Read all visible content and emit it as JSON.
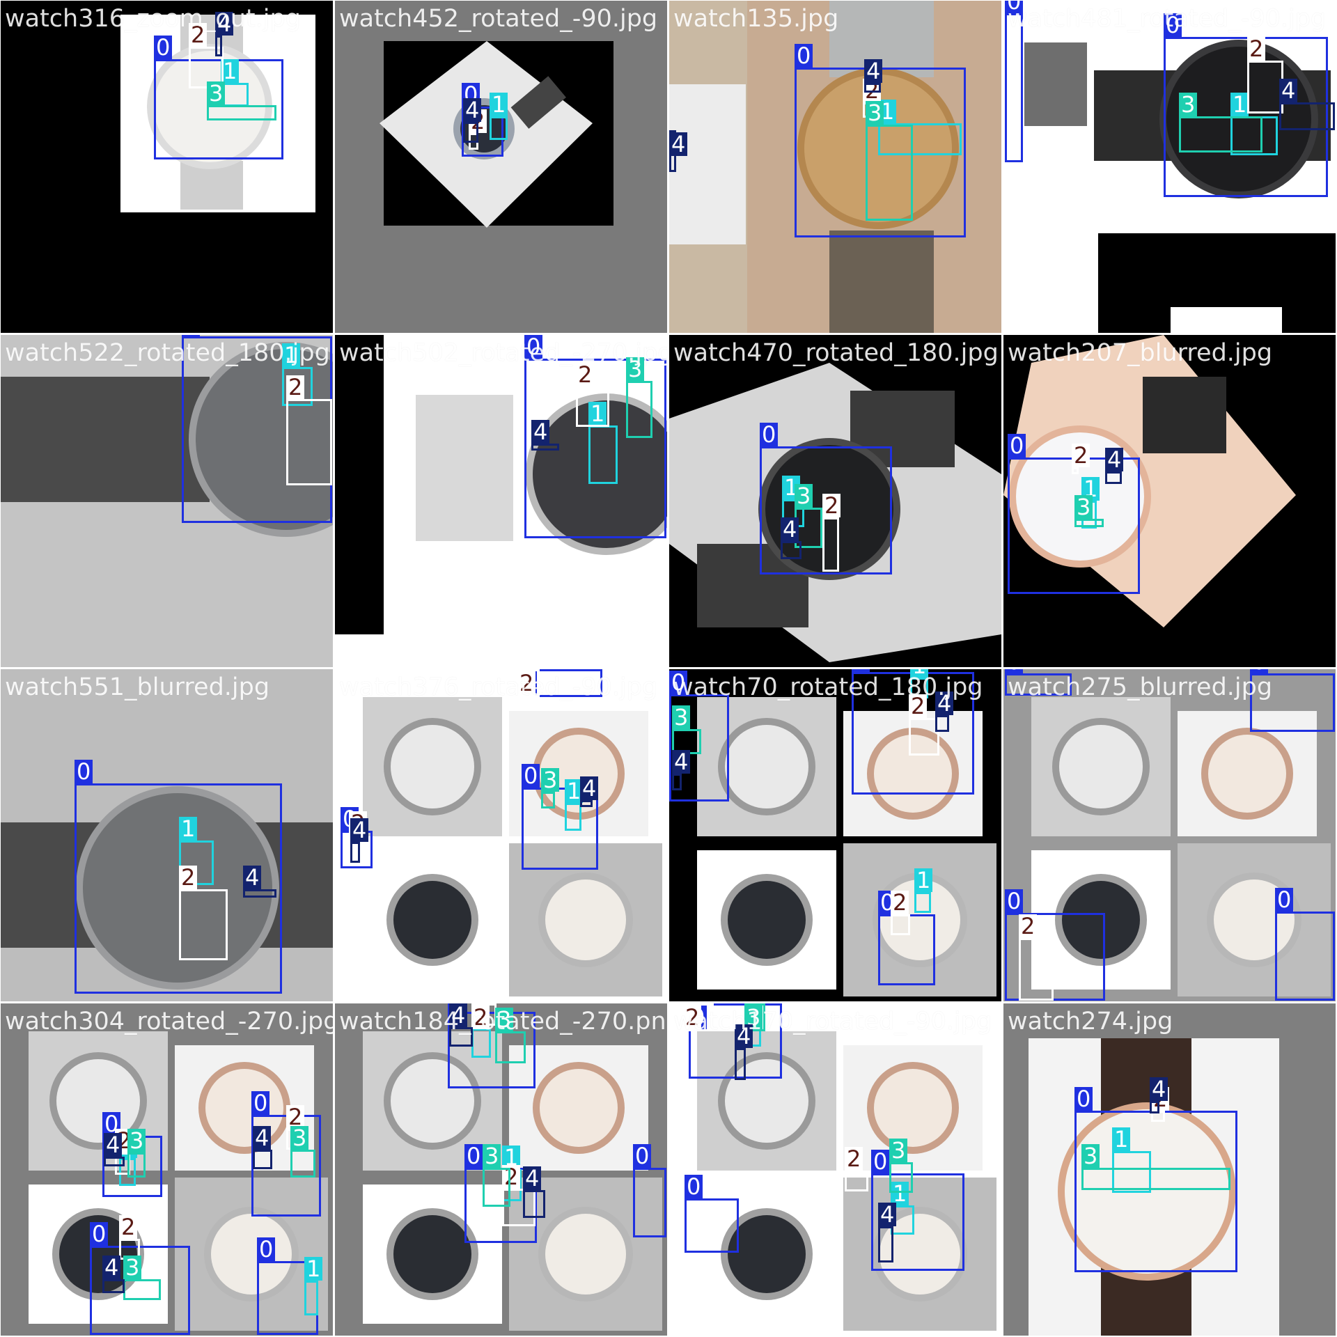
{
  "classes": {
    "0": {
      "color": "#1f30e0",
      "text": "#ffffff"
    },
    "1": {
      "color": "#20d3de",
      "text": "#ffffff"
    },
    "2": {
      "color": "#ffffff",
      "text": "#5a1a14"
    },
    "3": {
      "color": "#1fcfb0",
      "text": "#ffffff"
    },
    "4": {
      "color": "#13236e",
      "text": "#ffffff"
    }
  },
  "tiles": [
    {
      "name": "watch316_zoom_out.jpg",
      "bg": "#000000",
      "icon": "silver-bracelet-watch-icon",
      "boxes": [
        [
          "0",
          ""
        ],
        [
          "1",
          ""
        ],
        [
          "2",
          ""
        ],
        [
          "3",
          ""
        ],
        [
          "4",
          ""
        ]
      ]
    },
    {
      "name": "watch452_rotated_-90.jpg",
      "bg": "#7a7a7a",
      "icon": "rotated-watch-icon",
      "boxes": [
        [
          "0",
          ""
        ],
        [
          "1",
          ""
        ],
        [
          "2",
          ""
        ],
        [
          "4",
          ""
        ]
      ]
    },
    {
      "name": "watch135.jpg",
      "bg": "#c9b9a3",
      "icon": "gold-fluted-bezel-watch-icon",
      "boxes": [
        [
          "0",
          ""
        ],
        [
          "1",
          ""
        ],
        [
          "2",
          ""
        ],
        [
          "3",
          ""
        ],
        [
          "4",
          ""
        ],
        [
          "4",
          ""
        ]
      ]
    },
    {
      "name": "watch481_rotated_-90.jpg",
      "bg": "#ffffff",
      "icon": "black-chronograph-watch-icon",
      "boxes": [
        [
          "0",
          ""
        ],
        [
          "0",
          ""
        ],
        [
          "1",
          ""
        ],
        [
          "2",
          ""
        ],
        [
          "3",
          ""
        ],
        [
          "4",
          ""
        ]
      ]
    },
    {
      "name": "watch522_rotated_180.jpg",
      "bg": "#c4c4c4",
      "icon": "grey-woven-strap-watch-icon",
      "boxes": [
        [
          "0",
          ""
        ],
        [
          "1",
          ""
        ],
        [
          "2",
          ""
        ]
      ]
    },
    {
      "name": "watch502_rotated_-270.jpg",
      "bg": "#ffffff",
      "icon": "mesh-bracelet-watch-icon",
      "boxes": [
        [
          "0",
          ""
        ],
        [
          "1",
          ""
        ],
        [
          "2",
          ""
        ],
        [
          "3",
          ""
        ],
        [
          "4",
          ""
        ]
      ]
    },
    {
      "name": "watch470_rotated_180.jpg",
      "bg": "#000000",
      "icon": "dark-diver-watch-icon",
      "boxes": [
        [
          "0",
          ""
        ],
        [
          "1",
          ""
        ],
        [
          "2",
          ""
        ],
        [
          "3",
          ""
        ],
        [
          "4",
          ""
        ]
      ]
    },
    {
      "name": "watch207_blurred.jpg",
      "bg": "#000000",
      "icon": "rose-gold-watch-icon",
      "boxes": [
        [
          "0",
          ""
        ],
        [
          "1",
          ""
        ],
        [
          "2",
          ""
        ],
        [
          "3",
          ""
        ],
        [
          "4",
          ""
        ]
      ]
    },
    {
      "name": "watch551_blurred.jpg",
      "bg": "#bdbdbd",
      "icon": "grey-dial-watch-icon",
      "boxes": [
        [
          "0",
          ""
        ],
        [
          "1",
          ""
        ],
        [
          "2",
          ""
        ],
        [
          "4",
          ""
        ]
      ]
    },
    {
      "name": "watch376_rotated_-90.jpg",
      "bg": "#ffffff",
      "icon": "mosaic-watch-icon",
      "boxes": [
        [
          "0",
          ""
        ],
        [
          "0",
          ""
        ],
        [
          "0",
          ""
        ],
        [
          "1",
          ""
        ],
        [
          "2",
          ""
        ],
        [
          "2",
          ""
        ],
        [
          "3",
          ""
        ],
        [
          "4",
          ""
        ],
        [
          "4",
          ""
        ]
      ]
    },
    {
      "name": "watch70_rotated_180.jpg",
      "bg": "#000000",
      "icon": "mosaic-watch-icon",
      "boxes": [
        [
          "0",
          ""
        ],
        [
          "0",
          ""
        ],
        [
          "0",
          ""
        ],
        [
          "1",
          ""
        ],
        [
          "1",
          ""
        ],
        [
          "2",
          ""
        ],
        [
          "2",
          ""
        ],
        [
          "3",
          ""
        ],
        [
          "4",
          ""
        ],
        [
          "4",
          ""
        ]
      ]
    },
    {
      "name": "watch275_blurred.jpg",
      "bg": "#9a9a9a",
      "icon": "mosaic-watch-icon",
      "boxes": [
        [
          "0",
          ""
        ],
        [
          "0",
          ""
        ],
        [
          "0",
          ""
        ],
        [
          "0",
          ""
        ],
        [
          "2",
          ""
        ]
      ]
    },
    {
      "name": "watch304_rotated_-270.jpg",
      "bg": "#7f7f7f",
      "icon": "mosaic-watch-icon",
      "boxes": [
        [
          "0",
          ""
        ],
        [
          "0",
          ""
        ],
        [
          "0",
          ""
        ],
        [
          "0",
          ""
        ],
        [
          "1",
          ""
        ],
        [
          "1",
          ""
        ],
        [
          "2",
          ""
        ],
        [
          "2",
          ""
        ],
        [
          "2",
          ""
        ],
        [
          "3",
          ""
        ],
        [
          "3",
          ""
        ],
        [
          "3",
          ""
        ],
        [
          "4",
          ""
        ],
        [
          "4",
          ""
        ],
        [
          "4",
          ""
        ]
      ]
    },
    {
      "name": "watch184_rotated_-270.png",
      "bg": "#7f7f7f",
      "icon": "mosaic-watch-icon",
      "boxes": [
        [
          "0",
          ""
        ],
        [
          "0",
          ""
        ],
        [
          "0",
          ""
        ],
        [
          "1",
          ""
        ],
        [
          "1",
          ""
        ],
        [
          "2",
          ""
        ],
        [
          "2",
          ""
        ],
        [
          "3",
          ""
        ],
        [
          "3",
          ""
        ],
        [
          "4",
          ""
        ],
        [
          "4",
          ""
        ]
      ]
    },
    {
      "name": "watch170_rotated_-90.jpg",
      "bg": "#ffffff",
      "icon": "mosaic-watch-icon",
      "boxes": [
        [
          "0",
          ""
        ],
        [
          "0",
          ""
        ],
        [
          "0",
          ""
        ],
        [
          "1",
          ""
        ],
        [
          "1",
          ""
        ],
        [
          "2",
          ""
        ],
        [
          "2",
          ""
        ],
        [
          "3",
          ""
        ],
        [
          "3",
          ""
        ],
        [
          "4",
          ""
        ],
        [
          "4",
          ""
        ]
      ]
    },
    {
      "name": "watch274.jpg",
      "bg": "#7f7f7f",
      "icon": "mido-leather-watch-icon",
      "boxes": [
        [
          "0",
          ""
        ],
        [
          "1",
          ""
        ],
        [
          "2",
          ""
        ],
        [
          "3",
          ""
        ],
        [
          "4",
          ""
        ]
      ]
    }
  ]
}
